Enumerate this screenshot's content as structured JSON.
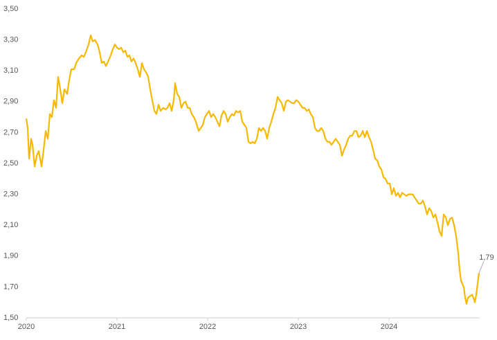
{
  "chart_data": {
    "type": "line",
    "x": [
      2020.0,
      2020.015,
      2020.031,
      2020.053,
      2020.069,
      2020.092,
      2020.115,
      2020.137,
      2020.168,
      2020.191,
      2020.214,
      2020.237,
      2020.26,
      2020.282,
      2020.305,
      2020.328,
      2020.351,
      2020.374,
      2020.397,
      2020.42,
      2020.45,
      2020.473,
      2020.496,
      2020.527,
      2020.55,
      2020.58,
      2020.611,
      2020.634,
      2020.656,
      2020.687,
      2020.71,
      2020.733,
      2020.756,
      2020.786,
      2020.809,
      2020.832,
      2020.855,
      2020.878,
      2020.901,
      2020.931,
      2020.954,
      2020.977,
      2021.0,
      2021.023,
      2021.046,
      2021.069,
      2021.092,
      2021.115,
      2021.137,
      2021.16,
      2021.183,
      2021.206,
      2021.229,
      2021.252,
      2021.275,
      2021.298,
      2021.321,
      2021.344,
      2021.366,
      2021.389,
      2021.412,
      2021.435,
      2021.458,
      2021.481,
      2021.511,
      2021.534,
      2021.557,
      2021.58,
      2021.603,
      2021.626,
      2021.641,
      2021.664,
      2021.687,
      2021.71,
      2021.733,
      2021.756,
      2021.779,
      2021.802,
      2021.824,
      2021.847,
      2021.87,
      2021.901,
      2021.924,
      2021.947,
      2021.969,
      2021.992,
      2022.015,
      2022.038,
      2022.061,
      2022.084,
      2022.107,
      2022.13,
      2022.153,
      2022.176,
      2022.198,
      2022.221,
      2022.244,
      2022.267,
      2022.29,
      2022.313,
      2022.336,
      2022.359,
      2022.382,
      2022.405,
      2022.427,
      2022.45,
      2022.473,
      2022.496,
      2022.519,
      2022.542,
      2022.565,
      2022.588,
      2022.611,
      2022.634,
      2022.656,
      2022.679,
      2022.702,
      2022.725,
      2022.748,
      2022.771,
      2022.794,
      2022.817,
      2022.84,
      2022.863,
      2022.885,
      2022.908,
      2022.931,
      2022.954,
      2022.977,
      2023.0,
      2023.023,
      2023.046,
      2023.069,
      2023.092,
      2023.115,
      2023.137,
      2023.16,
      2023.183,
      2023.206,
      2023.229,
      2023.252,
      2023.275,
      2023.298,
      2023.321,
      2023.344,
      2023.366,
      2023.389,
      2023.412,
      2023.435,
      2023.458,
      2023.481,
      2023.504,
      2023.527,
      2023.55,
      2023.573,
      2023.595,
      2023.618,
      2023.641,
      2023.664,
      2023.687,
      2023.71,
      2023.733,
      2023.756,
      2023.779,
      2023.802,
      2023.824,
      2023.847,
      2023.87,
      2023.893,
      2023.916,
      2023.939,
      2023.962,
      2023.985,
      2024.008,
      2024.031,
      2024.053,
      2024.076,
      2024.099,
      2024.122,
      2024.145,
      2024.168,
      2024.191,
      2024.214,
      2024.237,
      2024.26,
      2024.282,
      2024.305,
      2024.328,
      2024.351,
      2024.374,
      2024.397,
      2024.42,
      2024.443,
      2024.466,
      2024.489,
      2024.511,
      2024.534,
      2024.557,
      2024.58,
      2024.603,
      2024.626,
      2024.649,
      2024.672,
      2024.695,
      2024.718,
      2024.74,
      2024.763,
      2024.779,
      2024.794,
      2024.809,
      2024.824,
      2024.84,
      2024.855,
      2024.87,
      2024.893,
      2024.916,
      2024.931,
      2024.947,
      2024.962,
      2024.977,
      2024.992
    ],
    "values": [
      2.79,
      2.73,
      2.53,
      2.66,
      2.62,
      2.48,
      2.55,
      2.58,
      2.48,
      2.59,
      2.71,
      2.66,
      2.82,
      2.8,
      2.91,
      2.86,
      3.06,
      2.98,
      2.89,
      2.98,
      2.95,
      3.04,
      3.11,
      3.11,
      3.15,
      3.18,
      3.2,
      3.19,
      3.22,
      3.27,
      3.33,
      3.29,
      3.3,
      3.27,
      3.22,
      3.15,
      3.16,
      3.13,
      3.16,
      3.2,
      3.24,
      3.27,
      3.25,
      3.24,
      3.25,
      3.22,
      3.23,
      3.19,
      3.2,
      3.16,
      3.18,
      3.15,
      3.11,
      3.06,
      3.15,
      3.11,
      3.09,
      3.06,
      2.98,
      2.91,
      2.84,
      2.82,
      2.88,
      2.84,
      2.86,
      2.85,
      2.86,
      2.89,
      2.84,
      2.91,
      3.02,
      2.95,
      2.93,
      2.86,
      2.89,
      2.9,
      2.86,
      2.86,
      2.82,
      2.8,
      2.77,
      2.71,
      2.73,
      2.75,
      2.8,
      2.82,
      2.84,
      2.8,
      2.82,
      2.8,
      2.77,
      2.74,
      2.81,
      2.84,
      2.82,
      2.77,
      2.8,
      2.82,
      2.81,
      2.84,
      2.83,
      2.84,
      2.77,
      2.75,
      2.73,
      2.64,
      2.63,
      2.64,
      2.63,
      2.66,
      2.73,
      2.71,
      2.73,
      2.71,
      2.66,
      2.73,
      2.77,
      2.82,
      2.86,
      2.93,
      2.91,
      2.89,
      2.84,
      2.9,
      2.91,
      2.9,
      2.89,
      2.89,
      2.91,
      2.9,
      2.88,
      2.86,
      2.86,
      2.84,
      2.85,
      2.82,
      2.8,
      2.73,
      2.71,
      2.71,
      2.73,
      2.71,
      2.66,
      2.64,
      2.64,
      2.62,
      2.64,
      2.66,
      2.64,
      2.62,
      2.55,
      2.59,
      2.62,
      2.66,
      2.68,
      2.68,
      2.71,
      2.71,
      2.67,
      2.68,
      2.71,
      2.67,
      2.71,
      2.67,
      2.64,
      2.59,
      2.53,
      2.52,
      2.48,
      2.46,
      2.41,
      2.4,
      2.37,
      2.37,
      2.3,
      2.34,
      2.29,
      2.31,
      2.28,
      2.31,
      2.3,
      2.29,
      2.3,
      2.3,
      2.3,
      2.28,
      2.26,
      2.24,
      2.24,
      2.26,
      2.22,
      2.17,
      2.21,
      2.19,
      2.15,
      2.17,
      2.12,
      2.06,
      2.03,
      2.17,
      2.15,
      2.1,
      2.14,
      2.15,
      2.1,
      2.03,
      1.92,
      1.81,
      1.74,
      1.72,
      1.7,
      1.63,
      1.59,
      1.63,
      1.64,
      1.65,
      1.63,
      1.6,
      1.65,
      1.72,
      1.79
    ],
    "color": "#f7b900",
    "xlim": [
      2020,
      2025
    ],
    "xticks": [
      2020,
      2021,
      2022,
      2023,
      2024
    ],
    "ylim": [
      1.5,
      3.5
    ],
    "yticks": [
      {
        "value": 1.5,
        "label": "1,50"
      },
      {
        "value": 1.7,
        "label": "1,70"
      },
      {
        "value": 1.9,
        "label": "1,90"
      },
      {
        "value": 2.1,
        "label": "2,10"
      },
      {
        "value": 2.3,
        "label": "2,30"
      },
      {
        "value": 2.5,
        "label": "2,50"
      },
      {
        "value": 2.7,
        "label": "2,70"
      },
      {
        "value": 2.9,
        "label": "2,90"
      },
      {
        "value": 3.1,
        "label": "3,10"
      },
      {
        "value": 3.3,
        "label": "3,30"
      },
      {
        "value": 3.5,
        "label": "3,50"
      }
    ],
    "end_label": {
      "value": 1.79,
      "label": "1,79"
    }
  }
}
